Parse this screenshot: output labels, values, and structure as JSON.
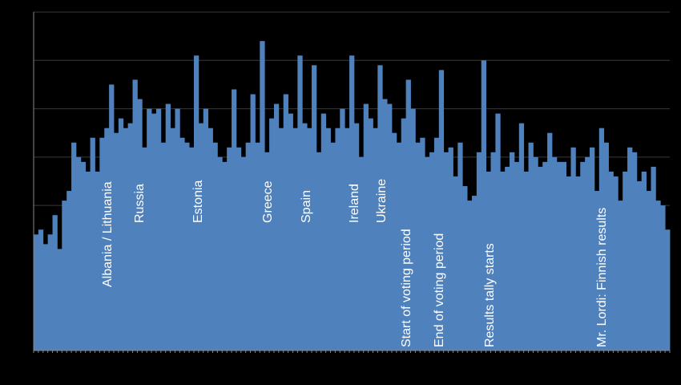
{
  "chart_data": {
    "type": "bar",
    "color": "#4f81bd",
    "grid": true,
    "ylim": [
      0,
      7
    ],
    "yticks": [
      0,
      1,
      2,
      3,
      4,
      5,
      6,
      7
    ],
    "values": [
      2.4,
      2.5,
      2.2,
      2.4,
      2.8,
      2.1,
      3.1,
      3.3,
      4.3,
      4.0,
      3.9,
      3.7,
      4.4,
      3.7,
      4.4,
      4.6,
      5.5,
      4.5,
      4.8,
      4.6,
      4.7,
      5.6,
      5.2,
      4.2,
      5.0,
      4.9,
      5.0,
      4.3,
      5.1,
      4.6,
      5.0,
      4.4,
      4.3,
      4.2,
      6.1,
      4.7,
      5.0,
      4.6,
      4.3,
      4.0,
      3.9,
      4.2,
      5.4,
      4.2,
      4.0,
      4.3,
      5.3,
      4.3,
      6.4,
      4.1,
      4.8,
      5.1,
      4.6,
      5.3,
      4.9,
      4.6,
      6.1,
      4.7,
      4.6,
      5.9,
      4.1,
      4.9,
      4.6,
      4.3,
      4.6,
      5.0,
      4.6,
      6.1,
      4.7,
      4.0,
      5.1,
      4.8,
      4.6,
      5.9,
      5.2,
      5.1,
      4.5,
      4.3,
      4.8,
      5.6,
      5.0,
      4.3,
      4.4,
      4.0,
      4.1,
      4.4,
      5.8,
      4.1,
      4.2,
      3.6,
      4.3,
      3.4,
      3.1,
      3.2,
      4.1,
      6.0,
      3.7,
      4.1,
      4.9,
      3.7,
      3.8,
      4.1,
      3.9,
      4.7,
      3.7,
      4.3,
      4.0,
      3.8,
      3.9,
      4.5,
      4.0,
      3.9,
      3.9,
      3.6,
      4.2,
      3.6,
      3.9,
      4.0,
      4.2,
      3.3,
      4.6,
      4.3,
      3.7,
      3.6,
      3.1,
      3.7,
      4.2,
      4.1,
      3.5,
      3.7,
      3.3,
      3.8,
      3.1,
      3.0,
      2.5
    ],
    "annotations": [
      "Albania / Lithuania",
      "Russia",
      "Estonia",
      "Greece",
      "Spain",
      "Ireland",
      "Ukraine",
      "Start of voting period",
      "End of voting period",
      "Results tally starts",
      "Mr. Lordi: Finnish results"
    ]
  }
}
